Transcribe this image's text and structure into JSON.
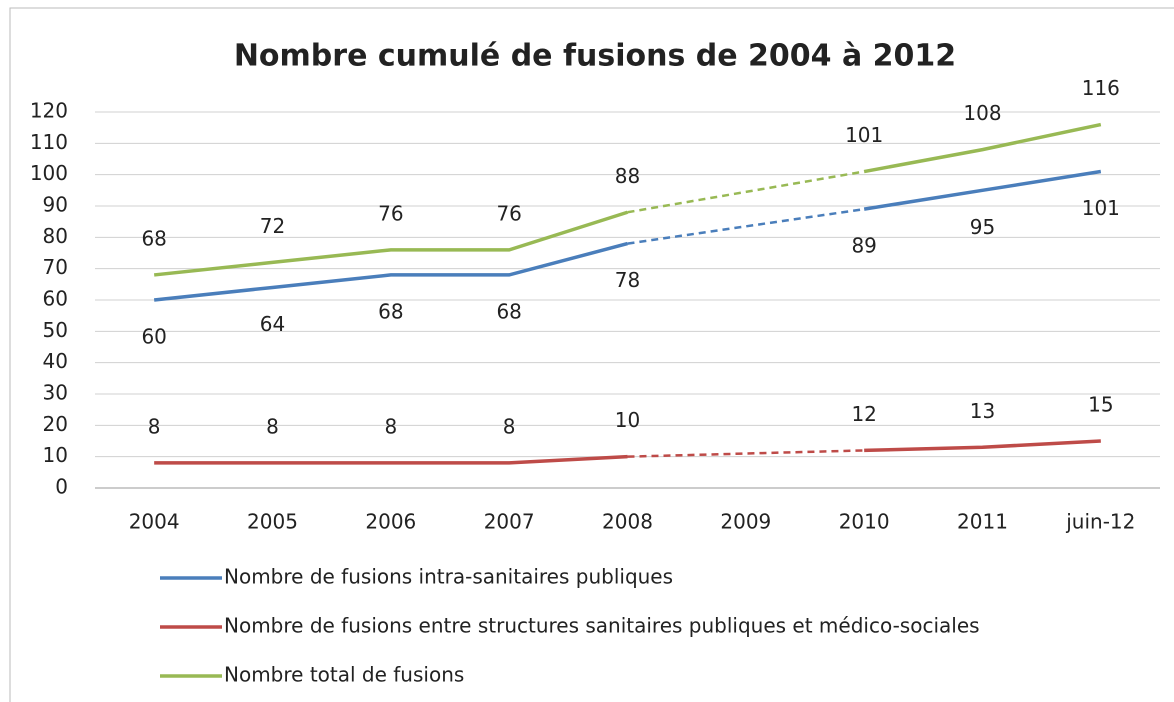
{
  "chart_data": {
    "type": "line",
    "title": "Nombre cumulé de fusions de 2004 à 2012",
    "categories": [
      "2004",
      "2005",
      "2006",
      "2007",
      "2008",
      "2009",
      "2010",
      "2011",
      "juin-12"
    ],
    "series": [
      {
        "name": "Nombre de fusions intra-sanitaires publiques",
        "color": "#4a7ebb",
        "values": [
          60,
          64,
          68,
          68,
          78,
          null,
          89,
          95,
          101
        ]
      },
      {
        "name": "Nombre de fusions entre structures sanitaires publiques et médico-sociales",
        "color": "#be4b48",
        "values": [
          8,
          8,
          8,
          8,
          10,
          null,
          12,
          13,
          15
        ]
      },
      {
        "name": "Nombre total de fusions",
        "color": "#98b954",
        "values": [
          68,
          72,
          76,
          76,
          88,
          null,
          101,
          108,
          116
        ]
      }
    ],
    "ylim": [
      0,
      120
    ],
    "yticks": [
      0,
      10,
      20,
      30,
      40,
      50,
      60,
      70,
      80,
      90,
      100,
      110,
      120
    ],
    "grid": true
  }
}
